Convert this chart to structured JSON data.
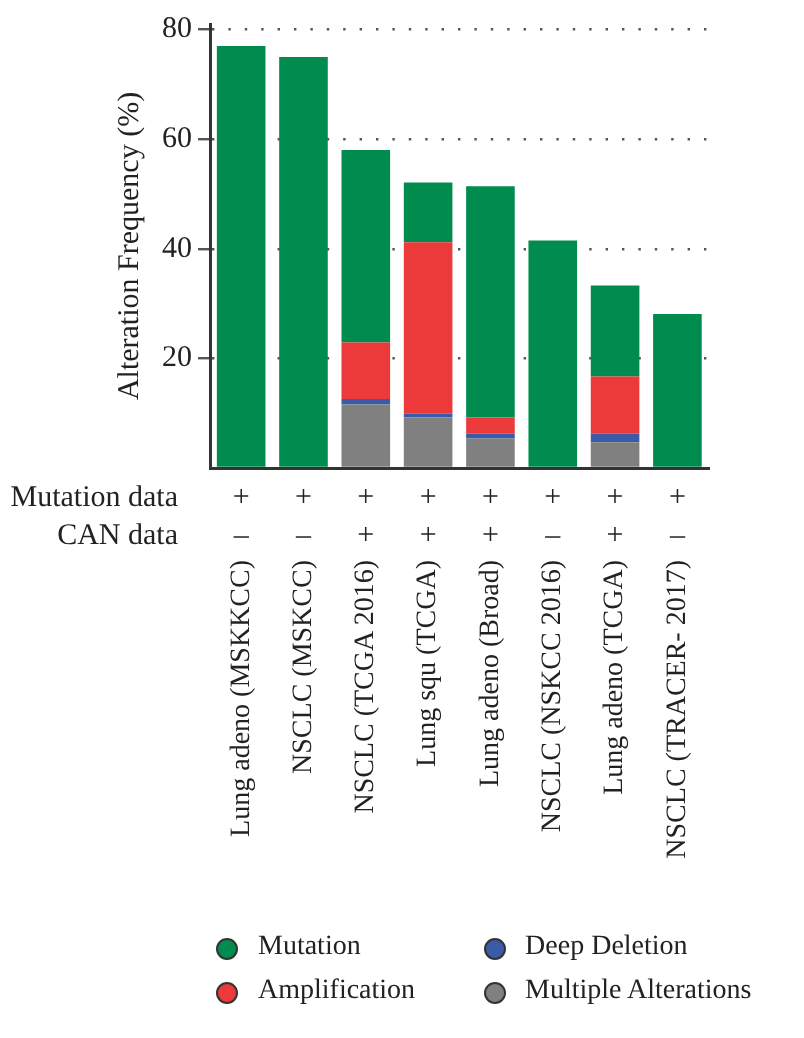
{
  "chart_data": {
    "type": "bar",
    "ylabel": "Alteration Frequency (%)",
    "categories": [
      "Lung adeno (MSKKCC)",
      "NSCLC (MSKCC)",
      "NSCLC (TCGA 2016)",
      "Lung squ (TCGA)",
      "Lung adeno (Broad)",
      "NSCLC (NSKCC 2016)",
      "Lung adeno (TCGA)",
      "NSCLC (TRACER- 2017)"
    ],
    "stacked": true,
    "series": [
      {
        "name": "Multiple Alterations",
        "color": "#808080",
        "values": [
          null,
          null,
          11.6,
          9.2,
          5.4,
          null,
          4.7,
          null
        ]
      },
      {
        "name": "Deep Deletion",
        "color": "#3b5ba8",
        "values": [
          null,
          null,
          1.0,
          0.7,
          0.9,
          null,
          1.6,
          null
        ]
      },
      {
        "name": "Amplification",
        "color": "#ec3a3b",
        "values": [
          null,
          null,
          10.3,
          31.3,
          2.9,
          null,
          10.4,
          null
        ]
      },
      {
        "name": "Mutation",
        "color": "#008c4e",
        "values": [
          77,
          75,
          35.1,
          10.9,
          42.2,
          41.5,
          16.6,
          28.1
        ]
      }
    ],
    "ylim": [
      0,
      81
    ],
    "yticks": [
      {
        "value": 0,
        "label": null
      },
      20,
      40,
      60,
      80
    ],
    "grid": "y",
    "legend": "bottom",
    "annotations": [
      "Mutation data",
      "+",
      "+",
      "+",
      "+",
      "+",
      "+",
      "+",
      "+",
      "CAN data",
      "–",
      "–",
      "+",
      "+",
      "+",
      "–",
      "+",
      "–"
    ]
  }
}
